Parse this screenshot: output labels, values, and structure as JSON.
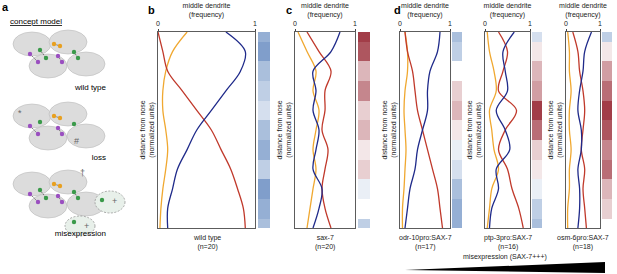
{
  "panel_labels": [
    "a",
    "b",
    "c",
    "d"
  ],
  "concept": {
    "title": "concept model",
    "states": [
      {
        "label": "wild type",
        "marks": []
      },
      {
        "label": "loss",
        "marks": [
          "*",
          "#"
        ]
      },
      {
        "label": "misexpression",
        "marks": [
          "†",
          "+",
          "+"
        ]
      }
    ]
  },
  "misexpression_label": "misexpression (SAX-7+++)",
  "chart_data": [
    {
      "type": "line",
      "x_title": [
        "middle dendrite",
        "(frequency)"
      ],
      "y_title": [
        "distance from nose",
        "(normalized units)"
      ],
      "caption": [
        "wild type",
        "(n=20)"
      ],
      "xlim": [
        0,
        1
      ],
      "xticks": [
        0,
        1
      ],
      "ylim": [
        1,
        0
      ],
      "tick_labels": "x",
      "y": [
        0,
        0.1,
        0.2,
        0.3,
        0.4,
        0.5,
        0.6,
        0.7,
        0.8,
        0.9,
        1
      ],
      "series": [
        {
          "color": "#f0a830",
          "values": [
            0.3,
            0.15,
            0.08,
            0.05,
            0.05,
            0.08,
            0.1,
            0.08,
            0.05,
            0.03,
            0.02
          ]
        },
        {
          "color": "#c0392b",
          "values": [
            0.0,
            0.05,
            0.1,
            0.25,
            0.4,
            0.55,
            0.65,
            0.75,
            0.82,
            0.88,
            0.9
          ]
        },
        {
          "color": "#1f2a8a",
          "values": [
            0.7,
            0.9,
            0.85,
            0.7,
            0.55,
            0.4,
            0.3,
            0.2,
            0.15,
            0.1,
            0.1
          ]
        }
      ],
      "strip": [
        -0.5,
        -0.6,
        -0.4,
        -0.3,
        -0.2,
        -0.4,
        -0.5,
        -0.3,
        -0.6,
        -0.5,
        -0.4
      ],
      "strip_range": [
        -1,
        1
      ]
    },
    {
      "type": "line",
      "x_title": [
        "middle dendrite",
        "(frequency)"
      ],
      "y_title": [
        "distance from nose",
        "(normalized units)"
      ],
      "caption": [
        "sax-7",
        "(n=20)"
      ],
      "xlim": [
        0,
        1
      ],
      "xticks": [
        0,
        1
      ],
      "ylim": [
        1,
        0
      ],
      "tick_labels": "x",
      "y": [
        0,
        0.1,
        0.2,
        0.3,
        0.4,
        0.5,
        0.6,
        0.7,
        0.8,
        0.9,
        1
      ],
      "series": [
        {
          "color": "#f0a830",
          "values": [
            0.05,
            0.2,
            0.35,
            0.3,
            0.4,
            0.35,
            0.3,
            0.35,
            0.3,
            0.25,
            0.2
          ]
        },
        {
          "color": "#c0392b",
          "values": [
            0.2,
            0.4,
            0.6,
            0.5,
            0.5,
            0.45,
            0.55,
            0.5,
            0.45,
            0.5,
            0.6
          ]
        },
        {
          "color": "#1f2a8a",
          "values": [
            0.75,
            0.6,
            0.3,
            0.35,
            0.3,
            0.4,
            0.35,
            0.3,
            0.45,
            0.4,
            0.3
          ]
        }
      ],
      "strip": [
        0.8,
        0.7,
        0.3,
        0.5,
        0.2,
        0.3,
        0.1,
        0.2,
        -0.1,
        0.0,
        -0.3
      ],
      "strip_range": [
        -1,
        1
      ]
    },
    {
      "type": "line",
      "x_title": [
        "middle dendrite",
        "(frequency)"
      ],
      "y_title": [
        "distance from nose",
        "(normalized units)"
      ],
      "caption": [
        "odr-10pro:SAX-7",
        "(n=17)"
      ],
      "xlim": [
        0,
        1
      ],
      "xticks": [
        0,
        1
      ],
      "ylim": [
        1,
        0
      ],
      "tick_labels": "x",
      "y": [
        0,
        0.1,
        0.2,
        0.3,
        0.4,
        0.5,
        0.6,
        0.7,
        0.8,
        0.9,
        1
      ],
      "series": [
        {
          "color": "#f0a830",
          "values": [
            0.1,
            0.15,
            0.15,
            0.1,
            0.08,
            0.1,
            0.12,
            0.1,
            0.08,
            0.05,
            0.05
          ]
        },
        {
          "color": "#c0392b",
          "values": [
            0.1,
            0.15,
            0.25,
            0.3,
            0.35,
            0.45,
            0.55,
            0.65,
            0.75,
            0.8,
            0.85
          ]
        },
        {
          "color": "#1f2a8a",
          "values": [
            0.8,
            0.75,
            0.6,
            0.55,
            0.55,
            0.45,
            0.35,
            0.3,
            0.2,
            0.15,
            0.1
          ]
        }
      ],
      "strip": [
        -0.4,
        -0.3,
        0.0,
        0.2,
        0.3,
        0.1,
        -0.1,
        -0.2,
        -0.4,
        -0.5,
        -0.5
      ],
      "strip_range": [
        -1,
        1
      ]
    },
    {
      "type": "line",
      "x_title": [
        "middle dendrite",
        "(frequency)"
      ],
      "y_title": [
        "distance from nose",
        "(normalized units)"
      ],
      "caption": [
        "ptp-3pro:SAX-7",
        "(n=16)"
      ],
      "xlim": [
        0,
        1
      ],
      "xticks": [
        0,
        1
      ],
      "ylim": [
        1,
        0
      ],
      "tick_labels": "x",
      "y": [
        0,
        0.1,
        0.2,
        0.3,
        0.4,
        0.5,
        0.6,
        0.7,
        0.8,
        0.9,
        1
      ],
      "series": [
        {
          "color": "#f0a830",
          "values": [
            0.05,
            0.1,
            0.2,
            0.25,
            0.1,
            0.15,
            0.2,
            0.3,
            0.15,
            0.1,
            0.05
          ]
        },
        {
          "color": "#c0392b",
          "values": [
            0.3,
            0.5,
            0.4,
            0.3,
            0.7,
            0.45,
            0.3,
            0.5,
            0.6,
            0.75,
            0.85
          ]
        },
        {
          "color": "#1f2a8a",
          "values": [
            0.65,
            0.4,
            0.45,
            0.5,
            0.25,
            0.45,
            0.55,
            0.25,
            0.3,
            0.15,
            0.1
          ]
        }
      ],
      "strip": [
        -0.2,
        0.1,
        0.3,
        0.4,
        0.8,
        0.6,
        0.2,
        0.1,
        -0.1,
        -0.3,
        -0.4
      ],
      "strip_range": [
        -1,
        1
      ]
    },
    {
      "type": "line",
      "x_title": [
        "middle dendrite",
        "(frequency)"
      ],
      "y_title": [
        "distance from nose",
        "(normalized units)"
      ],
      "caption": [
        "osm-6pro:SAX-7",
        "(n=18)"
      ],
      "xlim": [
        0,
        1
      ],
      "xticks": [
        0,
        1
      ],
      "ylim": [
        1,
        0
      ],
      "tick_labels": "x",
      "y": [
        0,
        0.1,
        0.2,
        0.3,
        0.4,
        0.5,
        0.6,
        0.7,
        0.8,
        0.9,
        1
      ],
      "series": [
        {
          "color": "#f0a830",
          "values": [
            0.05,
            0.1,
            0.1,
            0.15,
            0.1,
            0.1,
            0.15,
            0.1,
            0.1,
            0.05,
            0.05
          ]
        },
        {
          "color": "#c0392b",
          "values": [
            0.2,
            0.35,
            0.4,
            0.5,
            0.55,
            0.5,
            0.45,
            0.55,
            0.5,
            0.55,
            0.6
          ]
        },
        {
          "color": "#1f2a8a",
          "values": [
            0.75,
            0.55,
            0.5,
            0.4,
            0.35,
            0.45,
            0.45,
            0.35,
            0.4,
            0.4,
            0.35
          ]
        }
      ],
      "strip": [
        -0.3,
        0.1,
        0.4,
        0.6,
        0.8,
        0.7,
        0.5,
        0.6,
        0.3,
        0.2,
        0.0
      ],
      "strip_range": [
        -1,
        1
      ]
    }
  ]
}
